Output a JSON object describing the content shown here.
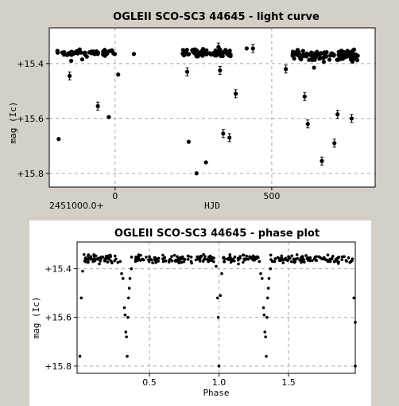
{
  "chart_data": [
    {
      "type": "scatter",
      "title": "OGLEII SCO-SC3 44645 - light curve",
      "xlabel": "HJD",
      "ylabel": "mag (Ic)",
      "x_offset_label": "2451000.0+",
      "x_range": [
        -210,
        830
      ],
      "y_range": [
        15.27,
        15.85
      ],
      "y_inverted": true,
      "grid": true,
      "x_ticks": [
        {
          "value": 0,
          "label": "0"
        },
        {
          "value": 500,
          "label": "500"
        }
      ],
      "y_ticks": [
        {
          "value": 15.4,
          "label": "+15.4"
        },
        {
          "value": 15.6,
          "label": "+15.6"
        },
        {
          "value": 15.8,
          "label": "+15.8"
        }
      ],
      "errorbar_points": [
        [
          -145,
          15.445
        ],
        [
          -55,
          15.555
        ],
        [
          230,
          15.43
        ],
        [
          330,
          15.34
        ],
        [
          335,
          15.425
        ],
        [
          345,
          15.655
        ],
        [
          365,
          15.67
        ],
        [
          440,
          15.345
        ],
        [
          385,
          15.51
        ],
        [
          545,
          15.42
        ],
        [
          605,
          15.52
        ],
        [
          615,
          15.62
        ],
        [
          660,
          15.755
        ],
        [
          700,
          15.69
        ],
        [
          710,
          15.585
        ],
        [
          755,
          15.6
        ]
      ],
      "outlier_points": [
        [
          -140,
          15.39
        ],
        [
          -105,
          15.385
        ],
        [
          -90,
          15.375
        ],
        [
          -180,
          15.675
        ],
        [
          -20,
          15.595
        ],
        [
          10,
          15.44
        ],
        [
          60,
          15.365
        ],
        [
          235,
          15.685
        ],
        [
          260,
          15.8
        ],
        [
          290,
          15.76
        ],
        [
          318,
          15.37
        ],
        [
          420,
          15.345
        ],
        [
          635,
          15.415
        ],
        [
          670,
          15.368
        ]
      ],
      "clusters": [
        {
          "x": [
            -185,
            0
          ],
          "y": [
            15.345,
            15.375
          ],
          "n": 60
        },
        {
          "x": [
            215,
            370
          ],
          "y": [
            15.345,
            15.38
          ],
          "n": 80
        },
        {
          "x": [
            565,
            775
          ],
          "y": [
            15.345,
            15.395
          ],
          "n": 110
        }
      ]
    },
    {
      "type": "scatter",
      "title": "OGLEII SCO-SC3 44645 - phase plot",
      "xlabel": "Phase",
      "ylabel": "mag (Ic)",
      "x_range": [
        -0.02,
        1.98
      ],
      "y_range": [
        15.29,
        15.83
      ],
      "y_inverted": true,
      "grid": true,
      "x_ticks": [
        {
          "value": 0.5,
          "label": "0.5"
        },
        {
          "value": 1.0,
          "label": "1.0"
        },
        {
          "value": 1.5,
          "label": "1.5"
        }
      ],
      "y_ticks": [
        {
          "value": 15.4,
          "label": "+15.4"
        },
        {
          "value": 15.6,
          "label": "+15.6"
        },
        {
          "value": 15.8,
          "label": "+15.8"
        }
      ],
      "points": [
        [
          0.0,
          15.76
        ],
        [
          0.01,
          15.52
        ],
        [
          0.02,
          15.41
        ],
        [
          0.06,
          15.37
        ],
        [
          0.08,
          15.35
        ],
        [
          0.1,
          15.36
        ],
        [
          0.14,
          15.38
        ],
        [
          0.18,
          15.36
        ],
        [
          0.22,
          15.35
        ],
        [
          0.26,
          15.36
        ],
        [
          0.29,
          15.37
        ],
        [
          0.3,
          15.42
        ],
        [
          0.31,
          15.44
        ],
        [
          0.32,
          15.56
        ],
        [
          0.325,
          15.59
        ],
        [
          0.33,
          15.66
        ],
        [
          0.335,
          15.68
        ],
        [
          0.34,
          15.76
        ],
        [
          0.345,
          15.6
        ],
        [
          0.35,
          15.52
        ],
        [
          0.355,
          15.48
        ],
        [
          0.36,
          15.44
        ],
        [
          0.37,
          15.4
        ],
        [
          0.4,
          15.37
        ],
        [
          0.45,
          15.36
        ],
        [
          0.5,
          15.35
        ],
        [
          0.55,
          15.36
        ],
        [
          0.6,
          15.37
        ],
        [
          0.65,
          15.36
        ],
        [
          0.7,
          15.35
        ],
        [
          0.75,
          15.36
        ],
        [
          0.8,
          15.37
        ],
        [
          0.85,
          15.36
        ],
        [
          0.9,
          15.35
        ],
        [
          0.95,
          15.36
        ],
        [
          0.98,
          15.39
        ],
        [
          0.99,
          15.52
        ],
        [
          0.995,
          15.6
        ],
        [
          1.0,
          15.8
        ],
        [
          1.01,
          15.51
        ],
        [
          1.02,
          15.42
        ],
        [
          1.06,
          15.36
        ],
        [
          1.08,
          15.35
        ],
        [
          1.1,
          15.36
        ],
        [
          1.14,
          15.38
        ],
        [
          1.18,
          15.36
        ],
        [
          1.22,
          15.35
        ],
        [
          1.26,
          15.36
        ],
        [
          1.29,
          15.37
        ],
        [
          1.3,
          15.42
        ],
        [
          1.31,
          15.44
        ],
        [
          1.32,
          15.56
        ],
        [
          1.325,
          15.59
        ],
        [
          1.33,
          15.66
        ],
        [
          1.335,
          15.68
        ],
        [
          1.34,
          15.76
        ],
        [
          1.345,
          15.6
        ],
        [
          1.35,
          15.52
        ],
        [
          1.355,
          15.48
        ],
        [
          1.36,
          15.44
        ],
        [
          1.37,
          15.4
        ],
        [
          1.4,
          15.37
        ],
        [
          1.45,
          15.36
        ],
        [
          1.5,
          15.35
        ],
        [
          1.55,
          15.36
        ],
        [
          1.6,
          15.37
        ],
        [
          1.65,
          15.36
        ],
        [
          1.7,
          15.35
        ],
        [
          1.75,
          15.36
        ],
        [
          1.8,
          15.37
        ],
        [
          1.85,
          15.36
        ],
        [
          1.9,
          15.35
        ],
        [
          1.95,
          15.37
        ],
        [
          1.97,
          15.52
        ],
        [
          1.98,
          15.62
        ],
        [
          1.98,
          15.8
        ]
      ],
      "baseline_bands": [
        {
          "x": [
            0.03,
            0.29
          ],
          "y": [
            15.34,
            15.38
          ],
          "n": 45
        },
        {
          "x": [
            0.37,
            0.98
          ],
          "y": [
            15.34,
            15.38
          ],
          "n": 90
        },
        {
          "x": [
            1.03,
            1.29
          ],
          "y": [
            15.34,
            15.38
          ],
          "n": 45
        },
        {
          "x": [
            1.37,
            1.96
          ],
          "y": [
            15.34,
            15.38
          ],
          "n": 90
        }
      ]
    }
  ]
}
